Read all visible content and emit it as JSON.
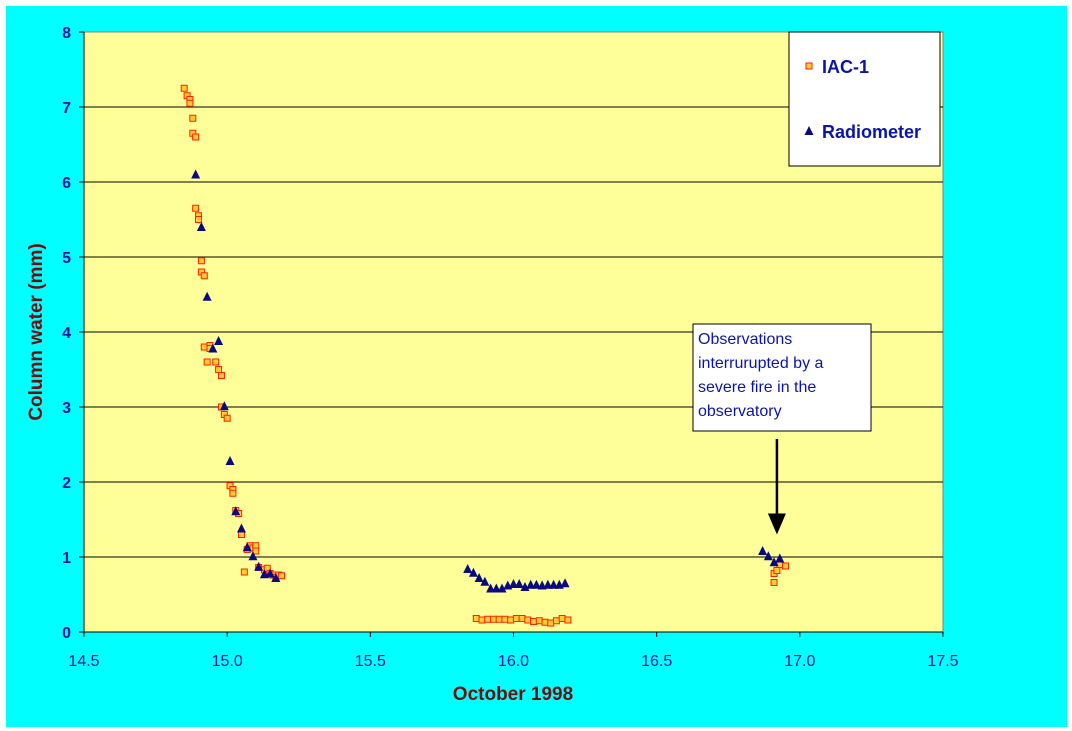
{
  "chart_data": {
    "type": "scatter",
    "title": "",
    "xlabel": "October 1998",
    "ylabel": "Column water (mm)",
    "xlim": [
      14.5,
      17.5
    ],
    "ylim": [
      0,
      8
    ],
    "xticks": [
      "14.5",
      "15.0",
      "15.5",
      "16.0",
      "16.5",
      "17.0",
      "17.5"
    ],
    "yticks": [
      "0",
      "1",
      "2",
      "3",
      "4",
      "5",
      "6",
      "7",
      "8"
    ],
    "grid": "horizontal",
    "legend_position": "top-right",
    "series": [
      {
        "name": "IAC-1",
        "marker": "square",
        "color": "#ffcc33",
        "edge_color": "#ff2200",
        "x": [
          14.85,
          14.86,
          14.87,
          14.87,
          14.88,
          14.88,
          14.89,
          14.89,
          14.9,
          14.9,
          14.91,
          14.91,
          14.92,
          14.92,
          14.93,
          14.94,
          14.94,
          14.96,
          14.97,
          14.98,
          14.98,
          14.99,
          15.0,
          15.01,
          15.02,
          15.02,
          15.03,
          15.04,
          15.05,
          15.06,
          15.07,
          15.08,
          15.09,
          15.1,
          15.1,
          15.11,
          15.13,
          15.14,
          15.15,
          15.16,
          15.17,
          15.18,
          15.19,
          15.87,
          15.89,
          15.91,
          15.93,
          15.95,
          15.97,
          15.99,
          16.01,
          16.03,
          16.05,
          16.07,
          16.09,
          16.11,
          16.13,
          16.15,
          16.17,
          16.19,
          16.91,
          16.91,
          16.92,
          16.93,
          16.95
        ],
        "y": [
          7.25,
          7.15,
          7.1,
          7.05,
          6.85,
          6.65,
          6.6,
          5.65,
          5.55,
          5.5,
          4.95,
          4.8,
          4.75,
          3.8,
          3.6,
          3.82,
          3.78,
          3.6,
          3.5,
          3.42,
          3.0,
          2.9,
          2.85,
          1.95,
          1.9,
          1.85,
          1.62,
          1.58,
          1.3,
          0.8,
          1.1,
          1.15,
          1.12,
          1.15,
          1.08,
          0.86,
          0.83,
          0.85,
          0.78,
          0.76,
          0.73,
          0.76,
          0.75,
          0.18,
          0.16,
          0.17,
          0.17,
          0.17,
          0.17,
          0.16,
          0.18,
          0.18,
          0.16,
          0.14,
          0.15,
          0.13,
          0.12,
          0.15,
          0.18,
          0.16,
          0.66,
          0.78,
          0.82,
          0.9,
          0.88
        ]
      },
      {
        "name": "Radiometer",
        "marker": "triangle",
        "color": "#0a0a80",
        "x": [
          14.89,
          14.91,
          14.93,
          14.95,
          14.97,
          14.99,
          15.01,
          15.03,
          15.05,
          15.07,
          15.09,
          15.11,
          15.13,
          15.15,
          15.17,
          15.84,
          15.86,
          15.88,
          15.9,
          15.92,
          15.94,
          15.96,
          15.98,
          16.0,
          16.02,
          16.04,
          16.06,
          16.08,
          16.1,
          16.12,
          16.14,
          16.16,
          16.18,
          16.87,
          16.89,
          16.91,
          16.93
        ],
        "y": [
          6.1,
          5.4,
          4.47,
          3.78,
          3.88,
          3.01,
          2.28,
          1.61,
          1.38,
          1.13,
          1.01,
          0.87,
          0.77,
          0.78,
          0.72,
          0.84,
          0.79,
          0.72,
          0.67,
          0.58,
          0.58,
          0.58,
          0.62,
          0.64,
          0.64,
          0.6,
          0.63,
          0.63,
          0.62,
          0.63,
          0.63,
          0.63,
          0.65,
          1.08,
          1.01,
          0.93,
          0.98
        ]
      }
    ],
    "annotation": {
      "text_lines": [
        "Observations",
        "interrurupted by a",
        "severe fire in the",
        "observatory"
      ],
      "arrow_x": 16.92,
      "arrow_y": 1.3
    }
  },
  "colors": {
    "outer_background": "#00ffff",
    "plot_background": "#ffff99",
    "grid": "#000000",
    "tick_text": "#0a14a8",
    "axis_title": "#6b1010"
  }
}
